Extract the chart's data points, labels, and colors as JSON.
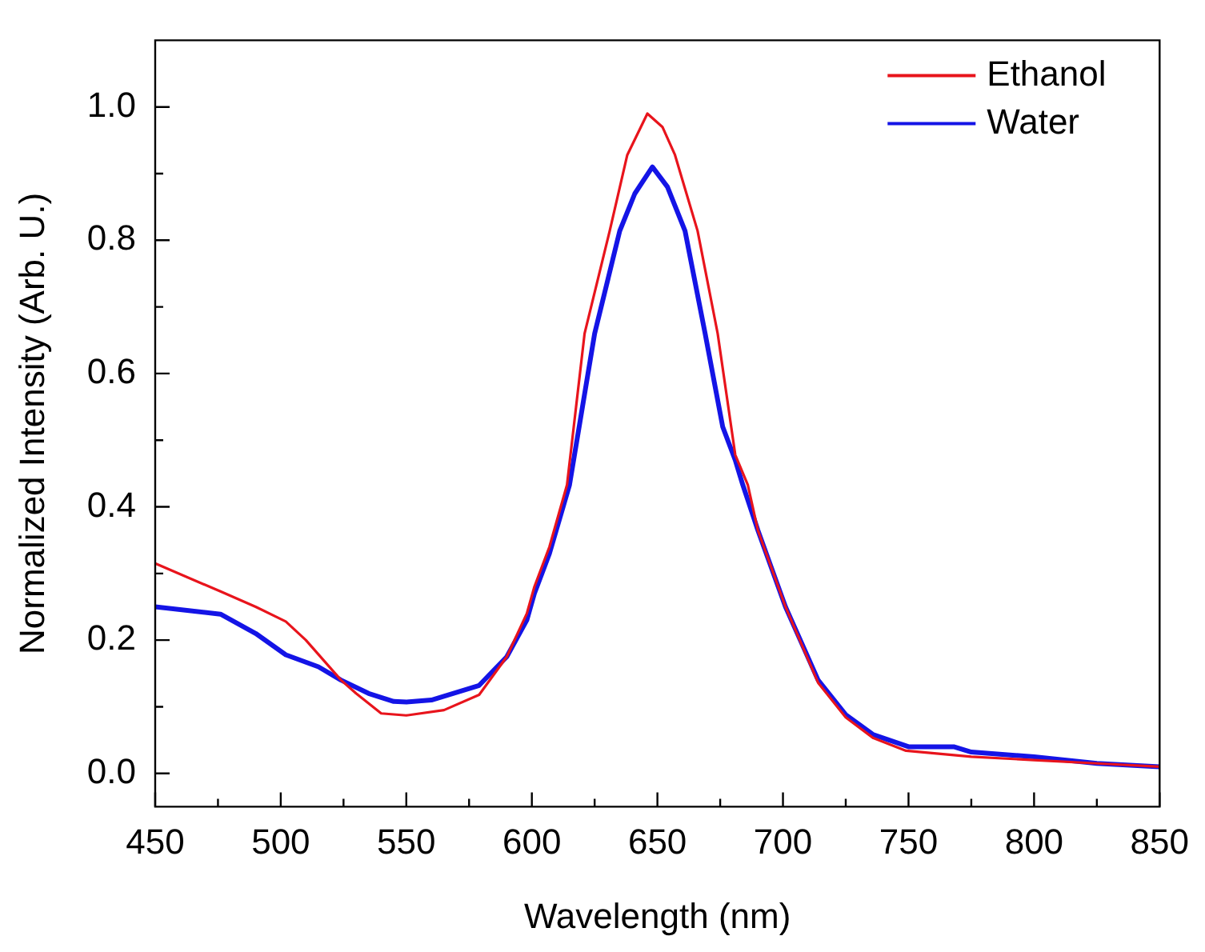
{
  "chart_data": {
    "type": "line",
    "xlabel": "Wavelength (nm)",
    "ylabel": "Normalized Intensity (Arb. U.)",
    "xlim": [
      450,
      850
    ],
    "xticks": [
      450,
      {
        "value": 475,
        "label": null
      },
      500,
      {
        "value": 525,
        "label": null
      },
      550,
      {
        "value": 575,
        "label": null
      },
      600,
      {
        "value": 625,
        "label": null
      },
      650,
      {
        "value": 675,
        "label": null
      },
      700,
      {
        "value": 725,
        "label": null
      },
      750,
      {
        "value": 775,
        "label": null
      },
      800,
      {
        "value": 825,
        "label": null
      },
      850
    ],
    "ylim": [
      -0.05,
      1.1
    ],
    "yticks": [
      {
        "value": 0,
        "label": "0.0"
      },
      {
        "value": 0.1,
        "label": null
      },
      0.2,
      {
        "value": 0.3,
        "label": null
      },
      0.4,
      {
        "value": 0.5,
        "label": null
      },
      0.6,
      {
        "value": 0.7,
        "label": null
      },
      0.8,
      {
        "value": 0.9,
        "label": null
      },
      {
        "value": 1,
        "label": "1.0"
      }
    ],
    "legend": "top right",
    "grid": false,
    "marker": "none",
    "line_style": "solid",
    "series": [
      {
        "name": "Ethanol",
        "color": "#e8141c",
        "x": [
          450,
          476,
          490,
          502,
          510,
          524,
          530,
          540,
          550,
          565,
          579,
          590,
          598,
          601,
          607,
          614,
          621,
          631,
          638,
          646,
          652,
          657,
          666,
          674,
          681,
          686,
          690,
          701,
          714,
          725,
          736,
          749,
          775,
          800,
          825,
          850
        ],
        "values": [
          0.315,
          0.273,
          0.25,
          0.228,
          0.2,
          0.14,
          0.12,
          0.09,
          0.087,
          0.095,
          0.118,
          0.175,
          0.24,
          0.28,
          0.34,
          0.433,
          0.66,
          0.814,
          0.928,
          0.99,
          0.97,
          0.928,
          0.814,
          0.66,
          0.478,
          0.433,
          0.365,
          0.25,
          0.136,
          0.084,
          0.053,
          0.034,
          0.025,
          0.02,
          0.015,
          0.01
        ]
      },
      {
        "name": "Water",
        "color": "#1414e6",
        "x": [
          450,
          476,
          490,
          502,
          515,
          524,
          535,
          545,
          550,
          560,
          579,
          590,
          598,
          601,
          607,
          615,
          625,
          635,
          641,
          648,
          654,
          661,
          669,
          676,
          681,
          684,
          690,
          701,
          714,
          725,
          736,
          750,
          768,
          775,
          800,
          825,
          850
        ],
        "values": [
          0.25,
          0.239,
          0.21,
          0.178,
          0.16,
          0.14,
          0.12,
          0.108,
          0.107,
          0.11,
          0.132,
          0.175,
          0.23,
          0.27,
          0.33,
          0.433,
          0.66,
          0.814,
          0.87,
          0.91,
          0.88,
          0.814,
          0.66,
          0.52,
          0.47,
          0.433,
          0.365,
          0.25,
          0.14,
          0.088,
          0.058,
          0.04,
          0.04,
          0.032,
          0.025,
          0.015,
          0.01
        ]
      }
    ]
  }
}
